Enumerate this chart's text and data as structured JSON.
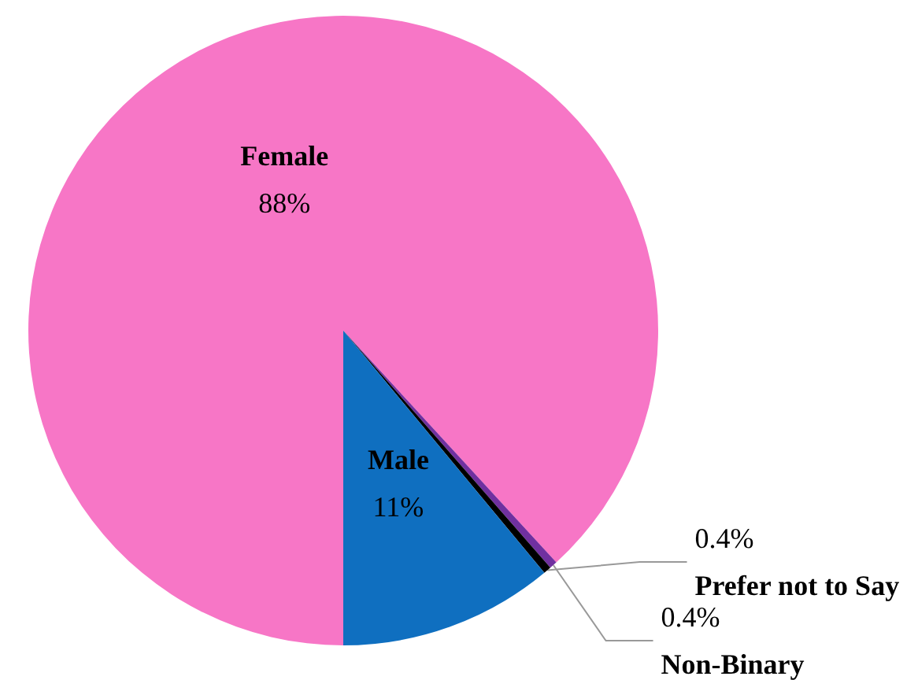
{
  "chart_data": {
    "type": "pie",
    "categories": [
      "Female",
      "Non-Binary",
      "Prefer not to Say",
      "Male"
    ],
    "values": [
      88,
      0.4,
      0.4,
      11
    ],
    "colors": [
      "#f776c6",
      "#7030a0",
      "#000000",
      "#0f6fc0"
    ],
    "value_labels": [
      "88%",
      "0.4%",
      "0.4%",
      "11%"
    ]
  }
}
